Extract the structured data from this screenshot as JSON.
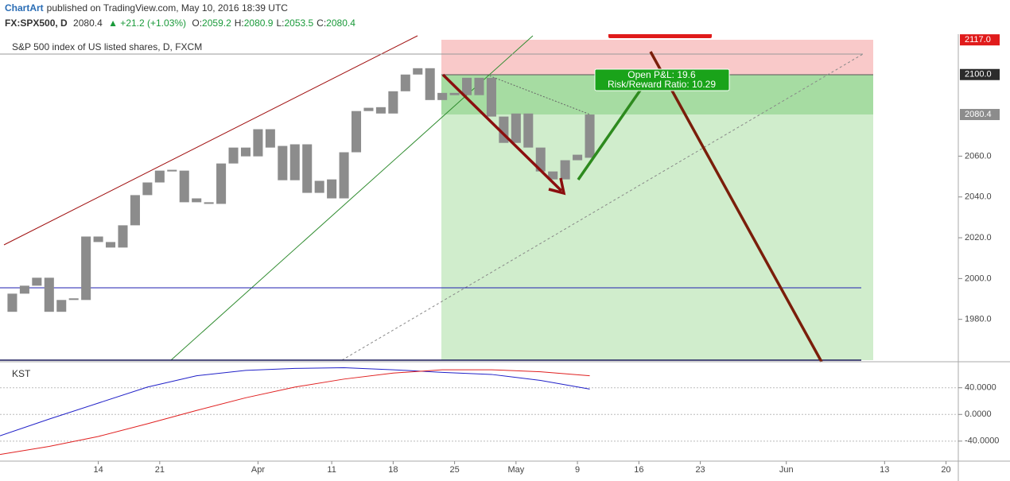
{
  "header": {
    "author": "ChartArt",
    "published": "published on TradingView.com, May 10, 2016 18:39 UTC",
    "symbol": "FX:SPX500, D",
    "last": "2080.4",
    "change": "▲ +21.2 (+1.03%)",
    "ohlc": [
      {
        "label": "O:",
        "value": "2059.2"
      },
      {
        "label": "H:",
        "value": "2080.9"
      },
      {
        "label": "L:",
        "value": "2053.5"
      },
      {
        "label": "C:",
        "value": "2080.4"
      }
    ]
  },
  "chart_data": [
    {
      "type": "candlestick",
      "title": "S&P 500 index of US listed shares, D, FXCM",
      "color": "#8c8c8c",
      "x": [
        -7,
        -6,
        -5,
        -4,
        -3,
        -2,
        -1,
        0,
        1,
        2,
        3,
        4,
        5,
        6,
        7,
        8,
        9,
        10,
        11,
        12,
        13,
        14,
        15,
        16,
        17,
        18,
        19,
        20,
        21,
        22,
        23,
        24,
        25,
        26,
        27,
        28,
        29,
        30,
        31,
        32,
        33,
        34,
        35,
        36,
        37,
        38,
        39,
        40
      ],
      "open": [
        1983.7,
        1992.6,
        1996.5,
        2000.4,
        1983.7,
        1989.5,
        1989.5,
        2020.6,
        2017.9,
        2015.2,
        2026.1,
        2040.9,
        2047.1,
        2053.3,
        2052.9,
        2039.3,
        2037.4,
        2036.6,
        2056.4,
        2064.2,
        2059.9,
        2073.2,
        2065.0,
        2048.2,
        2065.8,
        2042.0,
        2048.6,
        2039.3,
        2061.9,
        2082.1,
        2084.0,
        2080.9,
        2091.8,
        2100.0,
        2103.1,
        2087.5,
        2091.0,
        2089.9,
        2098.4,
        2098.4,
        2079.4,
        2066.5,
        2080.9,
        2064.2,
        2052.5,
        2048.6,
        2058.0,
        2059.2
      ],
      "close": [
        1992.6,
        1996.5,
        2000.4,
        1983.7,
        1989.5,
        1990.3,
        2020.6,
        2017.9,
        2015.2,
        2026.1,
        2040.9,
        2047.1,
        2052.9,
        2052.5,
        2037.4,
        2037.4,
        2036.6,
        2056.4,
        2064.2,
        2059.9,
        2073.2,
        2064.2,
        2048.2,
        2065.8,
        2042.0,
        2047.9,
        2039.3,
        2061.9,
        2082.1,
        2083.7,
        2080.9,
        2091.8,
        2100.0,
        2103.1,
        2087.5,
        2091.0,
        2089.9,
        2098.4,
        2089.9,
        2079.4,
        2066.5,
        2080.9,
        2064.2,
        2052.5,
        2048.6,
        2058.0,
        2060.7,
        2080.4
      ],
      "xlim": [
        -8,
        70
      ],
      "xticks": [
        {
          "value": 0,
          "label": "14"
        },
        {
          "value": 5,
          "label": "21"
        },
        {
          "value": 13,
          "label": "Apr"
        },
        {
          "value": 19,
          "label": "11"
        },
        {
          "value": 24,
          "label": "18"
        },
        {
          "value": 29,
          "label": "25"
        },
        {
          "value": 34,
          "label": "May"
        },
        {
          "value": 39,
          "label": "9"
        },
        {
          "value": 44,
          "label": "16"
        },
        {
          "value": 49,
          "label": "23"
        },
        {
          "value": 56,
          "label": "Jun"
        },
        {
          "value": 64,
          "label": "13"
        },
        {
          "value": 69,
          "label": "20"
        }
      ],
      "ylim": [
        1960,
        2119
      ],
      "yticks": [
        {
          "value": 1980,
          "label": "1980.0"
        },
        {
          "value": 2000,
          "label": "2000.0"
        },
        {
          "value": 2020,
          "label": "2020.0"
        },
        {
          "value": 2040,
          "label": "2040.0"
        },
        {
          "value": 2060,
          "label": "2060.0"
        }
      ],
      "price_tags": [
        {
          "value": 2117,
          "label": "2117.0",
          "color": "#e01b1b"
        },
        {
          "value": 2100,
          "label": "2100.0",
          "color": "#2b2b2b"
        },
        {
          "value": 2080.4,
          "label": "2080.4",
          "color": "#8c8c8c"
        }
      ],
      "annotations": [
        "Open P&L: 19.6",
        "Risk/Reward Ratio: 10.29"
      ]
    },
    {
      "type": "line",
      "title": "KST",
      "x": [
        -8,
        -4,
        0,
        4,
        8,
        12,
        16,
        20,
        24,
        28,
        32,
        36,
        40
      ],
      "series": [
        {
          "color": "#2121c8",
          "values": [
            -32,
            -7,
            17,
            41,
            58,
            66,
            69,
            70,
            67,
            63,
            60,
            51,
            38
          ]
        },
        {
          "color": "#e02020",
          "values": [
            -60,
            -48,
            -33,
            -14,
            6,
            25,
            41,
            53,
            62,
            67,
            67,
            64,
            58
          ]
        }
      ],
      "xlim": [
        -8,
        70
      ],
      "ylim": [
        -70,
        79
      ],
      "yticks": [
        {
          "value": -40,
          "label": "-40.0000"
        },
        {
          "value": 0,
          "label": "0.0000"
        },
        {
          "value": 40,
          "label": "40.0000"
        }
      ]
    }
  ]
}
